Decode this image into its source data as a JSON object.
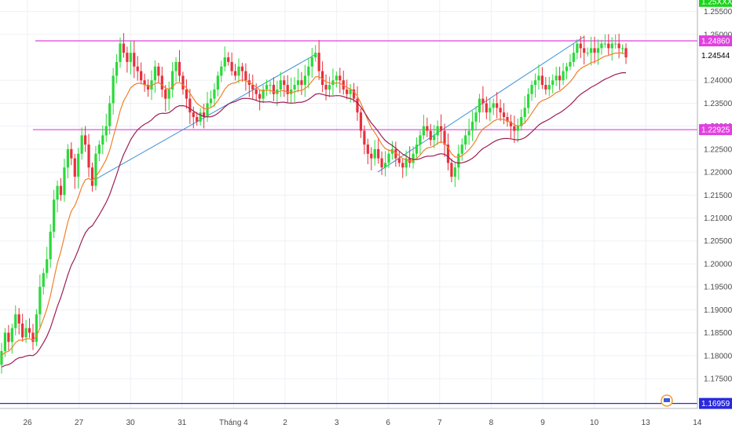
{
  "chart_data": {
    "type": "candlestick",
    "title": "",
    "xlabel": "",
    "ylabel": "",
    "ylim": [
      1.1685,
      1.2575
    ],
    "x_ticks": [
      "26",
      "27",
      "30",
      "31",
      "Tháng 4",
      "2",
      "3",
      "6",
      "7",
      "8",
      "9",
      "10",
      "13",
      "14"
    ],
    "y_ticks": [
      "1.25500",
      "1.25000",
      "1.24000",
      "1.23500",
      "1.23000",
      "1.22500",
      "1.22000",
      "1.21500",
      "1.21000",
      "1.20500",
      "1.20000",
      "1.19500",
      "1.19000",
      "1.18500",
      "1.18000",
      "1.17500"
    ],
    "price_labels": {
      "top": "1.25XXX",
      "resistance": "1.24860",
      "current": "1.24544",
      "support_mid": "1.22925",
      "support_low": "1.16959"
    },
    "horizontal_levels": [
      {
        "value": 1.2486,
        "color": "#e040e0"
      },
      {
        "value": 1.22925,
        "color": "#e040e0"
      },
      {
        "value": 1.16959,
        "color": "#2a2adc"
      }
    ],
    "trendlines": [
      {
        "x": [
          1.3,
          5.6
        ],
        "y": [
          1.2183,
          1.2457
        ]
      },
      {
        "x": [
          6.8,
          10.8
        ],
        "y": [
          1.22,
          1.2495
        ]
      }
    ],
    "closes": [
      1.181,
      1.185,
      1.183,
      1.186,
      1.189,
      1.187,
      1.184,
      1.186,
      1.185,
      1.183,
      1.189,
      1.195,
      1.198,
      1.201,
      1.207,
      1.214,
      1.217,
      1.215,
      1.221,
      1.225,
      1.223,
      1.219,
      1.224,
      1.228,
      1.226,
      1.221,
      1.217,
      1.224,
      1.226,
      1.228,
      1.23,
      1.235,
      1.241,
      1.244,
      1.248,
      1.246,
      1.244,
      1.246,
      1.243,
      1.242,
      1.24,
      1.239,
      1.238,
      1.24,
      1.243,
      1.241,
      1.238,
      1.236,
      1.238,
      1.242,
      1.244,
      1.241,
      1.238,
      1.236,
      1.233,
      1.232,
      1.231,
      1.233,
      1.232,
      1.235,
      1.236,
      1.238,
      1.241,
      1.243,
      1.245,
      1.244,
      1.242,
      1.241,
      1.243,
      1.242,
      1.24,
      1.239,
      1.238,
      1.237,
      1.236,
      1.238,
      1.239,
      1.239,
      1.237,
      1.238,
      1.24,
      1.239,
      1.237,
      1.238,
      1.239,
      1.24,
      1.239,
      1.241,
      1.243,
      1.245,
      1.246,
      1.242,
      1.239,
      1.238,
      1.239,
      1.24,
      1.241,
      1.24,
      1.238,
      1.237,
      1.238,
      1.236,
      1.233,
      1.229,
      1.226,
      1.224,
      1.223,
      1.225,
      1.223,
      1.221,
      1.222,
      1.224,
      1.225,
      1.223,
      1.222,
      1.221,
      1.223,
      1.222,
      1.224,
      1.226,
      1.228,
      1.23,
      1.229,
      1.227,
      1.228,
      1.23,
      1.229,
      1.226,
      1.222,
      1.219,
      1.221,
      1.224,
      1.226,
      1.228,
      1.229,
      1.231,
      1.233,
      1.236,
      1.235,
      1.233,
      1.234,
      1.235,
      1.234,
      1.233,
      1.232,
      1.231,
      1.23,
      1.229,
      1.23,
      1.232,
      1.234,
      1.237,
      1.239,
      1.24,
      1.241,
      1.239,
      1.238,
      1.239,
      1.24,
      1.241,
      1.24,
      1.242,
      1.243,
      1.244,
      1.246,
      1.248,
      1.247,
      1.246,
      1.246,
      1.247,
      1.246,
      1.247,
      1.248,
      1.248,
      1.247,
      1.248,
      1.248,
      1.247,
      1.247,
      1.245
    ]
  }
}
